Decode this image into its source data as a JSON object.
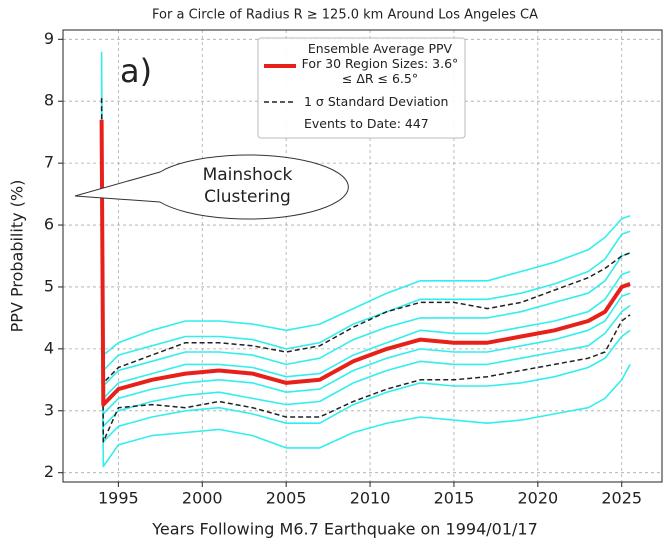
{
  "chart_data": {
    "type": "line",
    "title": "For a Circle of Radius R ≥ 125.0 km Around Los Angeles CA",
    "xlabel": "Years Following M6.7 Earthquake on 1994/01/17",
    "ylabel": "PPV Probability (%)",
    "panel_label": "a)",
    "callout": "Mainshock Clustering",
    "legend_note": "Events to Date: 447",
    "grid": true,
    "x": [
      1994.0,
      1994.1,
      1995,
      1997,
      1999,
      2001,
      2003,
      2005,
      2007,
      2009,
      2011,
      2013,
      2015,
      2017,
      2019,
      2021,
      2023,
      2024,
      2025,
      2025.5
    ],
    "xlim": [
      1991.7,
      2027.4
    ],
    "xticks": [
      1995,
      2000,
      2005,
      2010,
      2015,
      2020,
      2025
    ],
    "ylim": [
      1.85,
      9.15
    ],
    "yticks": [
      2,
      3,
      4,
      5,
      6,
      7,
      8,
      9
    ],
    "series": [
      {
        "name": "Ensemble Average PPV For 30 Region Sizes: 3.6° ≤ ΔR ≤ 6.5°",
        "color": "#e8201a",
        "style": "solid",
        "values": [
          7.7,
          3.1,
          3.35,
          3.5,
          3.6,
          3.65,
          3.6,
          3.45,
          3.5,
          3.8,
          4.0,
          4.15,
          4.1,
          4.1,
          4.2,
          4.3,
          4.45,
          4.6,
          5.0,
          5.05
        ]
      },
      {
        "name": "1 σ Standard Deviation",
        "color": "#222222",
        "style": "dashed",
        "values": [
          8.05,
          3.45,
          3.7,
          3.9,
          4.1,
          4.1,
          4.05,
          3.95,
          4.05,
          4.35,
          4.6,
          4.75,
          4.75,
          4.65,
          4.75,
          4.95,
          5.15,
          5.3,
          5.5,
          5.55
        ]
      },
      {
        "color": "#222222",
        "style": "dashed",
        "values": [
          7.35,
          2.5,
          3.05,
          3.1,
          3.05,
          3.15,
          3.05,
          2.9,
          2.9,
          3.15,
          3.35,
          3.5,
          3.5,
          3.55,
          3.65,
          3.75,
          3.85,
          3.95,
          4.45,
          4.55
        ]
      },
      {
        "color": "#33eeee",
        "style": "solid",
        "values": [
          7.0,
          2.1,
          2.45,
          2.6,
          2.65,
          2.7,
          2.6,
          2.4,
          2.4,
          2.65,
          2.8,
          2.9,
          2.85,
          2.8,
          2.85,
          2.95,
          3.05,
          3.2,
          3.5,
          3.75
        ]
      },
      {
        "color": "#33eeee",
        "style": "solid",
        "values": [
          7.3,
          2.5,
          2.75,
          2.9,
          3.0,
          3.05,
          2.95,
          2.8,
          2.8,
          3.1,
          3.3,
          3.45,
          3.4,
          3.4,
          3.45,
          3.55,
          3.7,
          3.85,
          4.2,
          4.3
        ]
      },
      {
        "color": "#33eeee",
        "style": "solid",
        "values": [
          7.5,
          2.75,
          3.0,
          3.15,
          3.25,
          3.3,
          3.2,
          3.1,
          3.15,
          3.45,
          3.65,
          3.8,
          3.75,
          3.75,
          3.85,
          3.95,
          4.05,
          4.25,
          4.6,
          4.7
        ]
      },
      {
        "color": "#33eeee",
        "style": "solid",
        "values": [
          7.6,
          2.95,
          3.2,
          3.35,
          3.45,
          3.5,
          3.45,
          3.3,
          3.35,
          3.65,
          3.85,
          4.0,
          3.95,
          3.95,
          4.05,
          4.15,
          4.3,
          4.45,
          4.85,
          4.9
        ]
      },
      {
        "color": "#33eeee",
        "style": "solid",
        "values": [
          7.9,
          3.2,
          3.45,
          3.6,
          3.75,
          3.75,
          3.7,
          3.55,
          3.6,
          3.9,
          4.1,
          4.3,
          4.25,
          4.25,
          4.35,
          4.45,
          4.6,
          4.8,
          5.2,
          5.25
        ]
      },
      {
        "color": "#33eeee",
        "style": "solid",
        "values": [
          8.1,
          3.4,
          3.65,
          3.8,
          3.95,
          3.95,
          3.9,
          3.75,
          3.85,
          4.15,
          4.35,
          4.5,
          4.5,
          4.5,
          4.6,
          4.75,
          4.9,
          5.1,
          5.5,
          5.55
        ]
      },
      {
        "color": "#33eeee",
        "style": "solid",
        "values": [
          8.4,
          3.65,
          3.9,
          4.05,
          4.2,
          4.2,
          4.15,
          4.0,
          4.1,
          4.4,
          4.6,
          4.8,
          4.8,
          4.8,
          4.9,
          5.05,
          5.25,
          5.45,
          5.85,
          5.9
        ]
      },
      {
        "color": "#33eeee",
        "style": "solid",
        "values": [
          8.8,
          3.9,
          4.1,
          4.3,
          4.45,
          4.45,
          4.4,
          4.3,
          4.4,
          4.65,
          4.9,
          5.1,
          5.1,
          5.1,
          5.25,
          5.4,
          5.6,
          5.8,
          6.1,
          6.15
        ]
      }
    ]
  }
}
